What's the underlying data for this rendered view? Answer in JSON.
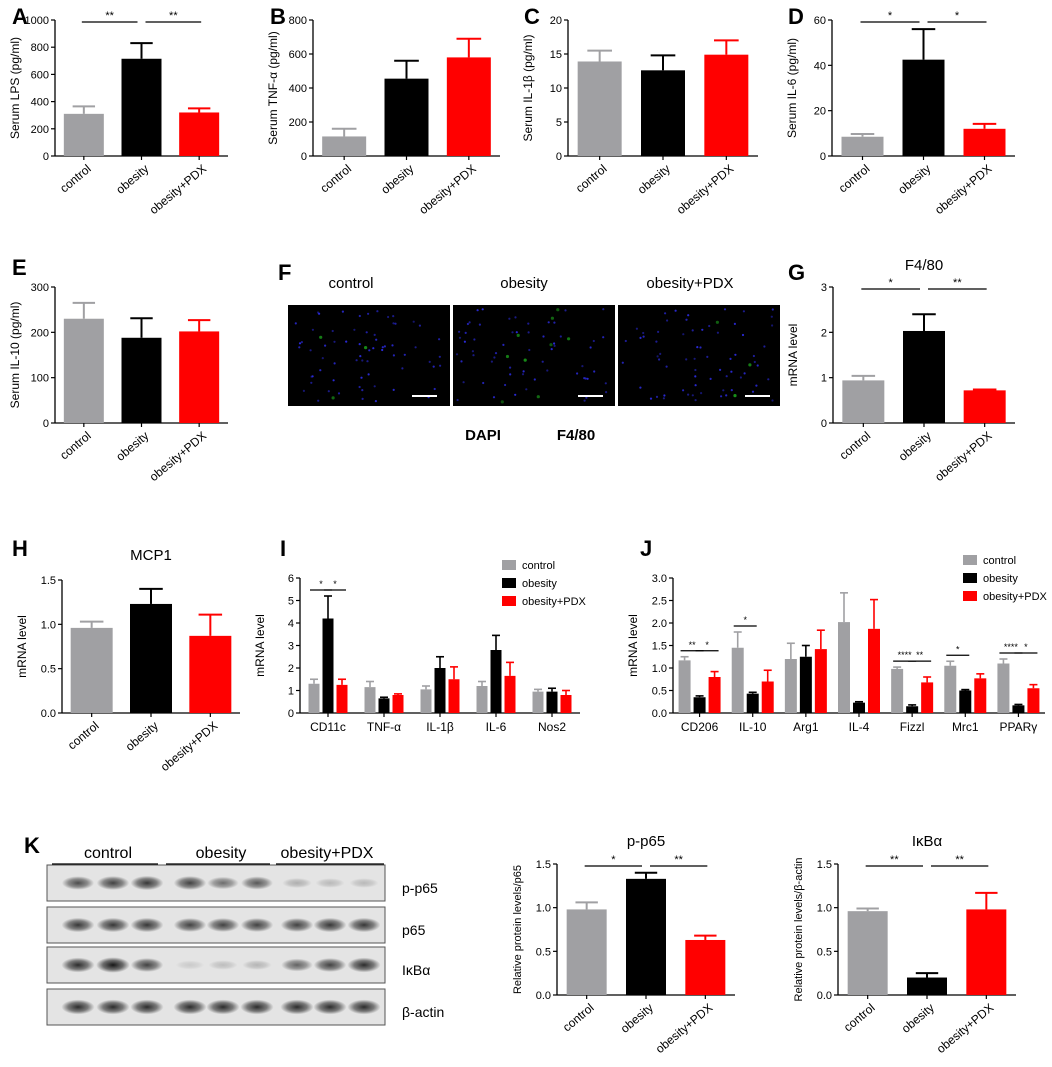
{
  "colors": {
    "control": "#a0a0a3",
    "obesity": "#000000",
    "pdx": "#ff0000",
    "dapi": "#2a2ad8",
    "f480": "#1a9a1a"
  },
  "chart_data": [
    {
      "id": "A",
      "type": "bar",
      "panel": "A",
      "ylabel": "Serum LPS (pg/ml)",
      "categories": [
        "control",
        "obesity",
        "obesity+PDX"
      ],
      "values": [
        310,
        715,
        320
      ],
      "errors": [
        55,
        115,
        30
      ],
      "ylim": [
        0,
        1000
      ],
      "yticks": [
        "0",
        "200",
        "400",
        "600",
        "800",
        "1000"
      ],
      "sig": [
        {
          "from": 0,
          "to": 1,
          "label": "**"
        },
        {
          "from": 1,
          "to": 2,
          "label": "**"
        }
      ]
    },
    {
      "id": "B",
      "type": "bar",
      "panel": "B",
      "ylabel": "Serum TNF-α (pg/ml)",
      "categories": [
        "control",
        "obesity",
        "obesity+PDX"
      ],
      "values": [
        115,
        455,
        580
      ],
      "errors": [
        45,
        105,
        110
      ],
      "ylim": [
        0,
        800
      ],
      "yticks": [
        "0",
        "200",
        "400",
        "600",
        "800"
      ],
      "sig": []
    },
    {
      "id": "C",
      "type": "bar",
      "panel": "C",
      "ylabel": "Serum IL-1β (pg/ml)",
      "categories": [
        "control",
        "obesity",
        "obesity+PDX"
      ],
      "values": [
        13.9,
        12.6,
        14.9
      ],
      "errors": [
        1.6,
        2.2,
        2.1
      ],
      "ylim": [
        0,
        20
      ],
      "yticks": [
        "0",
        "5",
        "10",
        "15",
        "20"
      ],
      "sig": []
    },
    {
      "id": "D",
      "type": "bar",
      "panel": "D",
      "ylabel": "Serum IL-6 (pg/ml)",
      "categories": [
        "control",
        "obesity",
        "obesity+PDX"
      ],
      "values": [
        8.5,
        42.5,
        12
      ],
      "errors": [
        1.2,
        13.5,
        2.2
      ],
      "ylim": [
        0,
        60
      ],
      "yticks": [
        "0",
        "20",
        "40",
        "60"
      ],
      "sig": [
        {
          "from": 0,
          "to": 1,
          "label": "*"
        },
        {
          "from": 1,
          "to": 2,
          "label": "*"
        }
      ]
    },
    {
      "id": "E",
      "type": "bar",
      "panel": "E",
      "ylabel": "Serum IL-10 (pg/ml)",
      "categories": [
        "control",
        "obesity",
        "obesity+PDX"
      ],
      "values": [
        230,
        188,
        202
      ],
      "errors": [
        35,
        43,
        25
      ],
      "ylim": [
        0,
        300
      ],
      "yticks": [
        "0",
        "100",
        "200",
        "300"
      ],
      "sig": []
    },
    {
      "id": "G",
      "type": "bar",
      "panel": "G",
      "title": "F4/80",
      "ylabel": "mRNA level",
      "categories": [
        "control",
        "obesity",
        "obesity+PDX"
      ],
      "values": [
        0.94,
        2.03,
        0.72
      ],
      "errors": [
        0.1,
        0.37,
        0.02
      ],
      "ylim": [
        0,
        3
      ],
      "yticks": [
        "0",
        "1",
        "2",
        "3"
      ],
      "sig": [
        {
          "from": 0,
          "to": 1,
          "label": "*"
        },
        {
          "from": 1,
          "to": 2,
          "label": "**"
        }
      ]
    },
    {
      "id": "H",
      "type": "bar",
      "panel": "H",
      "title": "MCP1",
      "ylabel": "mRNA level",
      "categories": [
        "control",
        "obesity",
        "obesity+PDX"
      ],
      "values": [
        0.96,
        1.23,
        0.87
      ],
      "errors": [
        0.07,
        0.17,
        0.24
      ],
      "ylim": [
        0,
        1.5
      ],
      "yticks": [
        "0.0",
        "0.5",
        "1.0",
        "1.5"
      ],
      "sig": []
    },
    {
      "id": "I",
      "type": "bar",
      "panel": "I",
      "ylabel": "mRNA level",
      "categories": [
        "CD11c",
        "TNF-α",
        "IL-1β",
        "IL-6",
        "Nos2"
      ],
      "series": [
        {
          "name": "control",
          "values": [
            1.3,
            1.15,
            1.05,
            1.2,
            0.95
          ],
          "errors": [
            0.2,
            0.25,
            0.15,
            0.2,
            0.1
          ]
        },
        {
          "name": "obesity",
          "values": [
            4.2,
            0.65,
            2.0,
            2.8,
            0.95
          ],
          "errors": [
            1.0,
            0.05,
            0.5,
            0.65,
            0.15
          ]
        },
        {
          "name": "obesity+PDX",
          "values": [
            1.25,
            0.8,
            1.5,
            1.65,
            0.8
          ],
          "errors": [
            0.25,
            0.05,
            0.55,
            0.6,
            0.2
          ]
        }
      ],
      "ylim": [
        0,
        6
      ],
      "yticks": [
        "0",
        "1",
        "2",
        "3",
        "4",
        "5",
        "6"
      ],
      "sig": [
        {
          "cat": 0,
          "from": 0,
          "to": 1,
          "label": "*"
        },
        {
          "cat": 0,
          "from": 1,
          "to": 2,
          "label": "*"
        }
      ],
      "legend": "top-right"
    },
    {
      "id": "J",
      "type": "bar",
      "panel": "J",
      "ylabel": "mRNA level",
      "categories": [
        "CD206",
        "IL-10",
        "Arg1",
        "IL-4",
        "Fizzl",
        "Mrc1",
        "PPARγ"
      ],
      "series": [
        {
          "name": "control",
          "values": [
            1.17,
            1.45,
            1.2,
            2.02,
            0.98,
            1.05,
            1.1
          ],
          "errors": [
            0.08,
            0.35,
            0.35,
            0.65,
            0.04,
            0.1,
            0.1
          ]
        },
        {
          "name": "obesity",
          "values": [
            0.35,
            0.43,
            1.25,
            0.23,
            0.15,
            0.5,
            0.17
          ],
          "errors": [
            0.03,
            0.03,
            0.25,
            0.02,
            0.03,
            0.02,
            0.02
          ]
        },
        {
          "name": "obesity+PDX",
          "values": [
            0.8,
            0.7,
            1.42,
            1.87,
            0.68,
            0.77,
            0.55
          ],
          "errors": [
            0.12,
            0.25,
            0.42,
            0.65,
            0.12,
            0.1,
            0.08
          ]
        }
      ],
      "ylim": [
        0,
        3.0
      ],
      "yticks": [
        "0.0",
        "0.5",
        "1.0",
        "1.5",
        "2.0",
        "2.5",
        "3.0"
      ],
      "sig": [
        {
          "cat": 0,
          "from": 0,
          "to": 1,
          "label": "**"
        },
        {
          "cat": 0,
          "from": 1,
          "to": 2,
          "label": "*"
        },
        {
          "cat": 1,
          "from": 0,
          "to": 1,
          "label": "*"
        },
        {
          "cat": 4,
          "from": 0,
          "to": 1,
          "label": "****"
        },
        {
          "cat": 4,
          "from": 1,
          "to": 2,
          "label": "**"
        },
        {
          "cat": 5,
          "from": 0,
          "to": 1,
          "label": "*"
        },
        {
          "cat": 6,
          "from": 0,
          "to": 1,
          "label": "****"
        },
        {
          "cat": 6,
          "from": 1,
          "to": 2,
          "label": "*"
        }
      ],
      "legend": "top-right"
    },
    {
      "id": "K1",
      "type": "bar",
      "title": "p-p65",
      "ylabel": "Relative protein levels/p65",
      "categories": [
        "control",
        "obesity",
        "obesity+PDX"
      ],
      "values": [
        0.98,
        1.33,
        0.63
      ],
      "errors": [
        0.08,
        0.07,
        0.05
      ],
      "ylim": [
        0,
        1.5
      ],
      "yticks": [
        "0.0",
        "0.5",
        "1.0",
        "1.5"
      ],
      "sig": [
        {
          "from": 0,
          "to": 1,
          "label": "*"
        },
        {
          "from": 1,
          "to": 2,
          "label": "**"
        }
      ]
    },
    {
      "id": "K2",
      "type": "bar",
      "title": "IκBα",
      "ylabel": "Relative protein levels/β-actin",
      "categories": [
        "control",
        "obesity",
        "obesity+PDX"
      ],
      "values": [
        0.96,
        0.2,
        0.98
      ],
      "errors": [
        0.03,
        0.05,
        0.19
      ],
      "ylim": [
        0,
        1.5
      ],
      "yticks": [
        "0.0",
        "0.5",
        "1.0",
        "1.5"
      ],
      "sig": [
        {
          "from": 0,
          "to": 1,
          "label": "**"
        },
        {
          "from": 1,
          "to": 2,
          "label": "**"
        }
      ]
    }
  ],
  "panel_f": {
    "panel": "F",
    "columns": [
      "control",
      "obesity",
      "obesity+PDX"
    ],
    "legend": [
      "DAPI",
      "F4/80"
    ]
  },
  "panel_k": {
    "panel": "K",
    "groups": [
      "control",
      "obesity",
      "obesity+PDX"
    ],
    "bands": [
      "p-p65",
      "p65",
      "IκBα",
      "β-actin"
    ],
    "band_intensity": [
      [
        0.7,
        0.75,
        0.8,
        0.75,
        0.55,
        0.65,
        0.25,
        0.2,
        0.2
      ],
      [
        0.8,
        0.8,
        0.8,
        0.75,
        0.75,
        0.75,
        0.75,
        0.8,
        0.8
      ],
      [
        0.85,
        0.95,
        0.75,
        0.12,
        0.18,
        0.22,
        0.6,
        0.75,
        0.85
      ],
      [
        0.85,
        0.85,
        0.85,
        0.85,
        0.85,
        0.85,
        0.85,
        0.85,
        0.85
      ]
    ]
  }
}
